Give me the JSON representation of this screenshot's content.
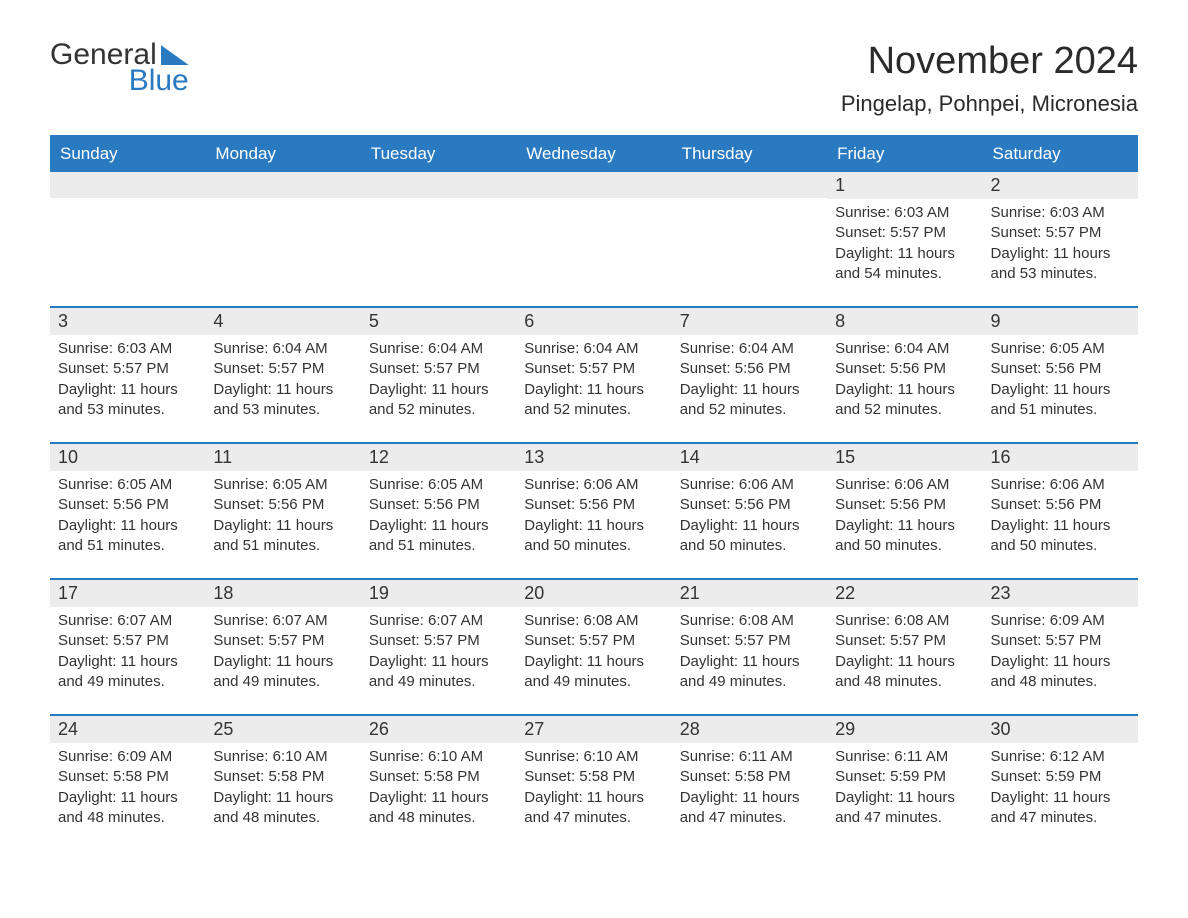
{
  "logo": {
    "text1": "General",
    "text2": "Blue"
  },
  "title": "November 2024",
  "location": "Pingelap, Pohnpei, Micronesia",
  "header_bg": "#2a7ac2",
  "header_fg": "#ffffff",
  "daynum_bg": "#ececec",
  "week_border": "#2a7ac2",
  "weekdays": [
    "Sunday",
    "Monday",
    "Tuesday",
    "Wednesday",
    "Thursday",
    "Friday",
    "Saturday"
  ],
  "weeks": [
    [
      {
        "n": "",
        "sr": "",
        "ss": "",
        "dl": ""
      },
      {
        "n": "",
        "sr": "",
        "ss": "",
        "dl": ""
      },
      {
        "n": "",
        "sr": "",
        "ss": "",
        "dl": ""
      },
      {
        "n": "",
        "sr": "",
        "ss": "",
        "dl": ""
      },
      {
        "n": "",
        "sr": "",
        "ss": "",
        "dl": ""
      },
      {
        "n": "1",
        "sr": "Sunrise: 6:03 AM",
        "ss": "Sunset: 5:57 PM",
        "dl": "Daylight: 11 hours and 54 minutes."
      },
      {
        "n": "2",
        "sr": "Sunrise: 6:03 AM",
        "ss": "Sunset: 5:57 PM",
        "dl": "Daylight: 11 hours and 53 minutes."
      }
    ],
    [
      {
        "n": "3",
        "sr": "Sunrise: 6:03 AM",
        "ss": "Sunset: 5:57 PM",
        "dl": "Daylight: 11 hours and 53 minutes."
      },
      {
        "n": "4",
        "sr": "Sunrise: 6:04 AM",
        "ss": "Sunset: 5:57 PM",
        "dl": "Daylight: 11 hours and 53 minutes."
      },
      {
        "n": "5",
        "sr": "Sunrise: 6:04 AM",
        "ss": "Sunset: 5:57 PM",
        "dl": "Daylight: 11 hours and 52 minutes."
      },
      {
        "n": "6",
        "sr": "Sunrise: 6:04 AM",
        "ss": "Sunset: 5:57 PM",
        "dl": "Daylight: 11 hours and 52 minutes."
      },
      {
        "n": "7",
        "sr": "Sunrise: 6:04 AM",
        "ss": "Sunset: 5:56 PM",
        "dl": "Daylight: 11 hours and 52 minutes."
      },
      {
        "n": "8",
        "sr": "Sunrise: 6:04 AM",
        "ss": "Sunset: 5:56 PM",
        "dl": "Daylight: 11 hours and 52 minutes."
      },
      {
        "n": "9",
        "sr": "Sunrise: 6:05 AM",
        "ss": "Sunset: 5:56 PM",
        "dl": "Daylight: 11 hours and 51 minutes."
      }
    ],
    [
      {
        "n": "10",
        "sr": "Sunrise: 6:05 AM",
        "ss": "Sunset: 5:56 PM",
        "dl": "Daylight: 11 hours and 51 minutes."
      },
      {
        "n": "11",
        "sr": "Sunrise: 6:05 AM",
        "ss": "Sunset: 5:56 PM",
        "dl": "Daylight: 11 hours and 51 minutes."
      },
      {
        "n": "12",
        "sr": "Sunrise: 6:05 AM",
        "ss": "Sunset: 5:56 PM",
        "dl": "Daylight: 11 hours and 51 minutes."
      },
      {
        "n": "13",
        "sr": "Sunrise: 6:06 AM",
        "ss": "Sunset: 5:56 PM",
        "dl": "Daylight: 11 hours and 50 minutes."
      },
      {
        "n": "14",
        "sr": "Sunrise: 6:06 AM",
        "ss": "Sunset: 5:56 PM",
        "dl": "Daylight: 11 hours and 50 minutes."
      },
      {
        "n": "15",
        "sr": "Sunrise: 6:06 AM",
        "ss": "Sunset: 5:56 PM",
        "dl": "Daylight: 11 hours and 50 minutes."
      },
      {
        "n": "16",
        "sr": "Sunrise: 6:06 AM",
        "ss": "Sunset: 5:56 PM",
        "dl": "Daylight: 11 hours and 50 minutes."
      }
    ],
    [
      {
        "n": "17",
        "sr": "Sunrise: 6:07 AM",
        "ss": "Sunset: 5:57 PM",
        "dl": "Daylight: 11 hours and 49 minutes."
      },
      {
        "n": "18",
        "sr": "Sunrise: 6:07 AM",
        "ss": "Sunset: 5:57 PM",
        "dl": "Daylight: 11 hours and 49 minutes."
      },
      {
        "n": "19",
        "sr": "Sunrise: 6:07 AM",
        "ss": "Sunset: 5:57 PM",
        "dl": "Daylight: 11 hours and 49 minutes."
      },
      {
        "n": "20",
        "sr": "Sunrise: 6:08 AM",
        "ss": "Sunset: 5:57 PM",
        "dl": "Daylight: 11 hours and 49 minutes."
      },
      {
        "n": "21",
        "sr": "Sunrise: 6:08 AM",
        "ss": "Sunset: 5:57 PM",
        "dl": "Daylight: 11 hours and 49 minutes."
      },
      {
        "n": "22",
        "sr": "Sunrise: 6:08 AM",
        "ss": "Sunset: 5:57 PM",
        "dl": "Daylight: 11 hours and 48 minutes."
      },
      {
        "n": "23",
        "sr": "Sunrise: 6:09 AM",
        "ss": "Sunset: 5:57 PM",
        "dl": "Daylight: 11 hours and 48 minutes."
      }
    ],
    [
      {
        "n": "24",
        "sr": "Sunrise: 6:09 AM",
        "ss": "Sunset: 5:58 PM",
        "dl": "Daylight: 11 hours and 48 minutes."
      },
      {
        "n": "25",
        "sr": "Sunrise: 6:10 AM",
        "ss": "Sunset: 5:58 PM",
        "dl": "Daylight: 11 hours and 48 minutes."
      },
      {
        "n": "26",
        "sr": "Sunrise: 6:10 AM",
        "ss": "Sunset: 5:58 PM",
        "dl": "Daylight: 11 hours and 48 minutes."
      },
      {
        "n": "27",
        "sr": "Sunrise: 6:10 AM",
        "ss": "Sunset: 5:58 PM",
        "dl": "Daylight: 11 hours and 47 minutes."
      },
      {
        "n": "28",
        "sr": "Sunrise: 6:11 AM",
        "ss": "Sunset: 5:58 PM",
        "dl": "Daylight: 11 hours and 47 minutes."
      },
      {
        "n": "29",
        "sr": "Sunrise: 6:11 AM",
        "ss": "Sunset: 5:59 PM",
        "dl": "Daylight: 11 hours and 47 minutes."
      },
      {
        "n": "30",
        "sr": "Sunrise: 6:12 AM",
        "ss": "Sunset: 5:59 PM",
        "dl": "Daylight: 11 hours and 47 minutes."
      }
    ]
  ]
}
